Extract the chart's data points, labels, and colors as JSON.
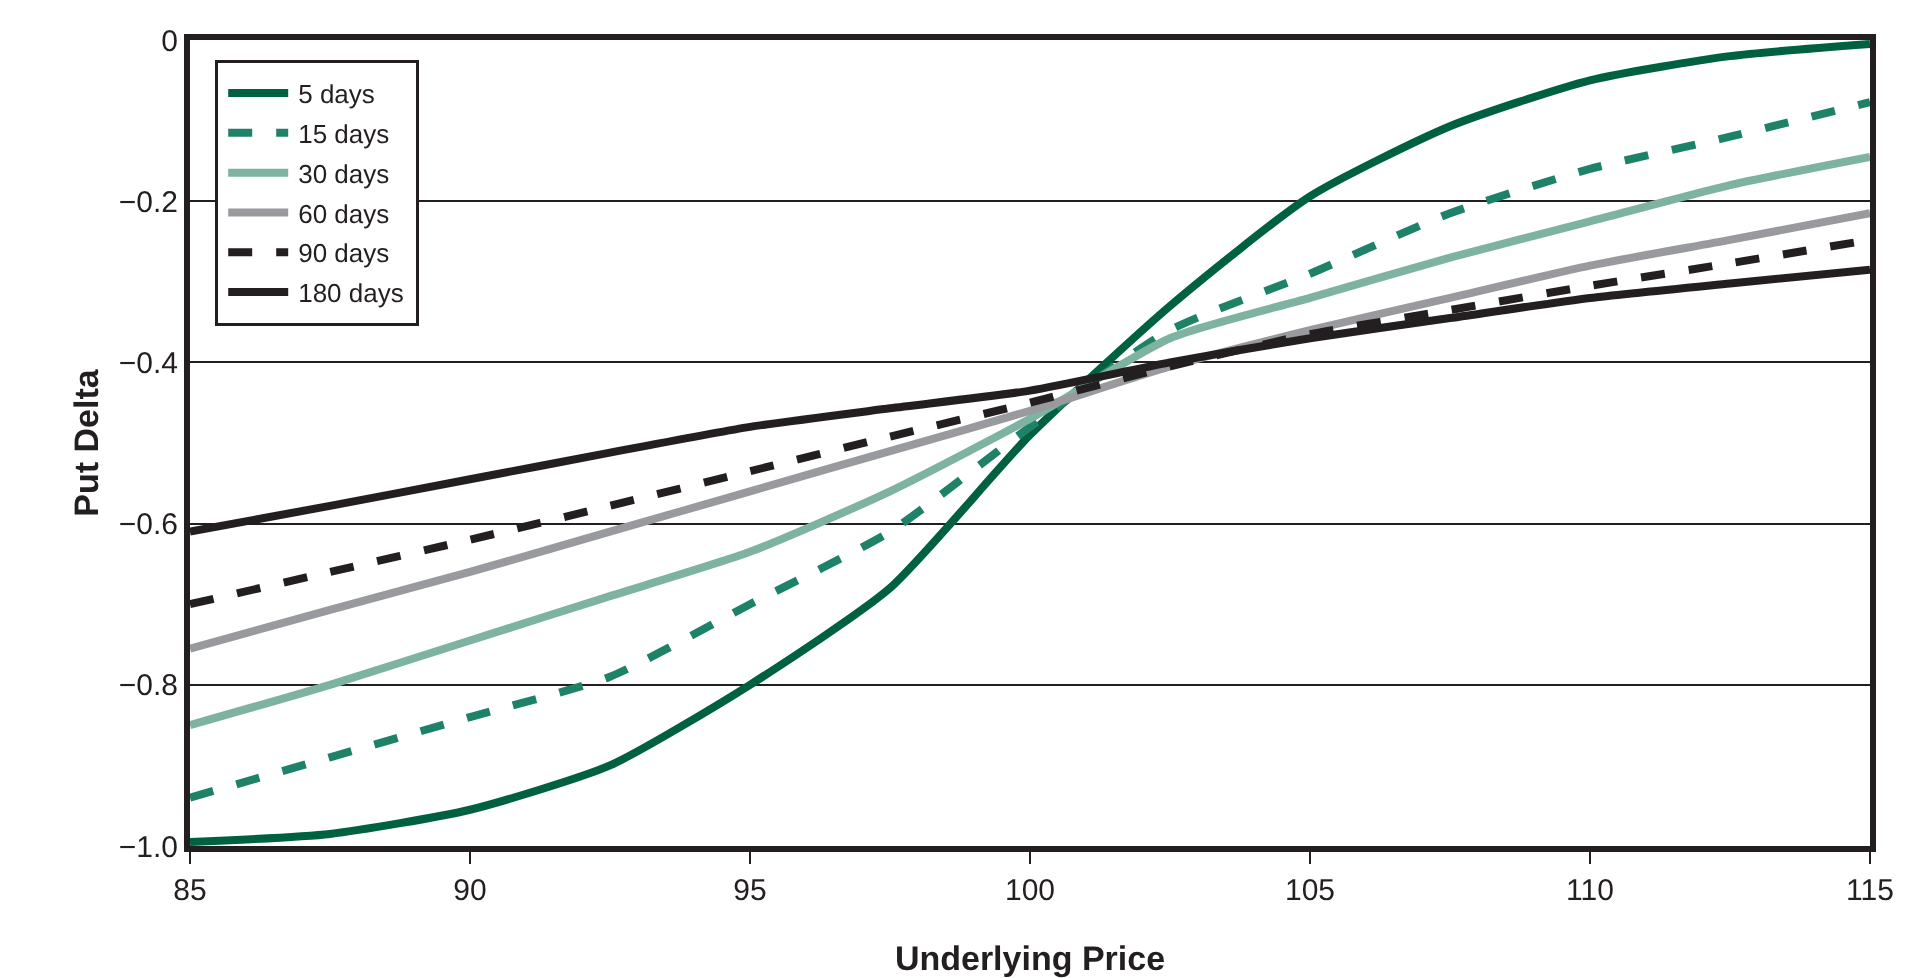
{
  "chart_data": {
    "type": "line",
    "xlabel": "Underlying Price",
    "ylabel": "Put Delta",
    "x": [
      85,
      87.5,
      90,
      92.5,
      95,
      97.5,
      100,
      102.5,
      105,
      107.5,
      110,
      112.5,
      115
    ],
    "series": [
      {
        "name": "5 days",
        "color": "#006141",
        "line_style": "solid",
        "values": [
          -0.995,
          -0.985,
          -0.955,
          -0.9,
          -0.8,
          -0.68,
          -0.49,
          -0.33,
          -0.194,
          -0.107,
          -0.05,
          -0.02,
          -0.005
        ]
      },
      {
        "name": "15 days",
        "color": "#1e8268",
        "line_style": "dashed",
        "values": [
          -0.94,
          -0.89,
          -0.84,
          -0.79,
          -0.7,
          -0.61,
          -0.48,
          -0.36,
          -0.29,
          -0.215,
          -0.16,
          -0.12,
          -0.077
        ]
      },
      {
        "name": "30 days",
        "color": "#7db3a0",
        "line_style": "solid",
        "values": [
          -0.85,
          -0.8,
          -0.745,
          -0.69,
          -0.635,
          -0.56,
          -0.47,
          -0.37,
          -0.32,
          -0.27,
          -0.225,
          -0.18,
          -0.145
        ]
      },
      {
        "name": "60 days",
        "color": "#999a9e",
        "line_style": "solid",
        "values": [
          -0.755,
          -0.707,
          -0.66,
          -0.61,
          -0.56,
          -0.51,
          -0.46,
          -0.405,
          -0.36,
          -0.32,
          -0.28,
          -0.248,
          -0.215
        ]
      },
      {
        "name": "90 days",
        "color": "#231f20",
        "line_style": "dashed",
        "values": [
          -0.7,
          -0.66,
          -0.62,
          -0.578,
          -0.535,
          -0.492,
          -0.45,
          -0.405,
          -0.365,
          -0.335,
          -0.305,
          -0.277,
          -0.248
        ]
      },
      {
        "name": "180 days",
        "color": "#231f20",
        "line_style": "solid",
        "values": [
          -0.61,
          -0.578,
          -0.545,
          -0.512,
          -0.48,
          -0.457,
          -0.435,
          -0.4,
          -0.37,
          -0.345,
          -0.32,
          -0.302,
          -0.285
        ]
      }
    ],
    "xlim": [
      85,
      115
    ],
    "xticks": [
      85,
      90,
      95,
      100,
      105,
      110,
      115
    ],
    "ylim": [
      -1,
      0
    ],
    "yticks": [
      {
        "value": -1,
        "label": "−1.0"
      },
      {
        "value": -0.8,
        "label": "−0.8"
      },
      {
        "value": -0.6,
        "label": "−0.6"
      },
      {
        "value": -0.4,
        "label": "−0.4"
      },
      {
        "value": -0.2,
        "label": "−0.2"
      },
      0
    ],
    "grid": "y",
    "legend": "top left",
    "marker": "none"
  }
}
